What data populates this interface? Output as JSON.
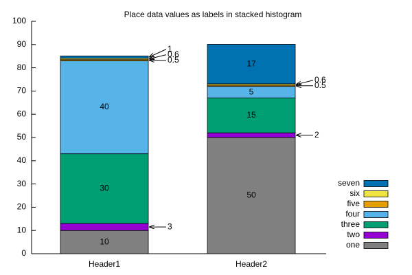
{
  "chart_data": {
    "type": "bar",
    "stacked": true,
    "title": "Place data values as labels in stacked histogram",
    "categories": [
      "Header1",
      "Header2"
    ],
    "series": [
      {
        "name": "one",
        "color": "#808080",
        "values": [
          10,
          50
        ]
      },
      {
        "name": "two",
        "color": "#9400d3",
        "values": [
          3,
          2
        ]
      },
      {
        "name": "three",
        "color": "#009e73",
        "values": [
          30,
          15
        ]
      },
      {
        "name": "four",
        "color": "#56b4e9",
        "values": [
          40,
          5
        ]
      },
      {
        "name": "five",
        "color": "#e69f00",
        "values": [
          0.5,
          0.5
        ]
      },
      {
        "name": "six",
        "color": "#f0e442",
        "values": [
          0.6,
          0.6
        ]
      },
      {
        "name": "seven",
        "color": "#0072b2",
        "values": [
          1,
          17
        ]
      }
    ],
    "ylim": [
      0,
      100
    ],
    "yticks": [
      0,
      10,
      20,
      30,
      40,
      50,
      60,
      70,
      80,
      90,
      100
    ],
    "legend": "right"
  }
}
